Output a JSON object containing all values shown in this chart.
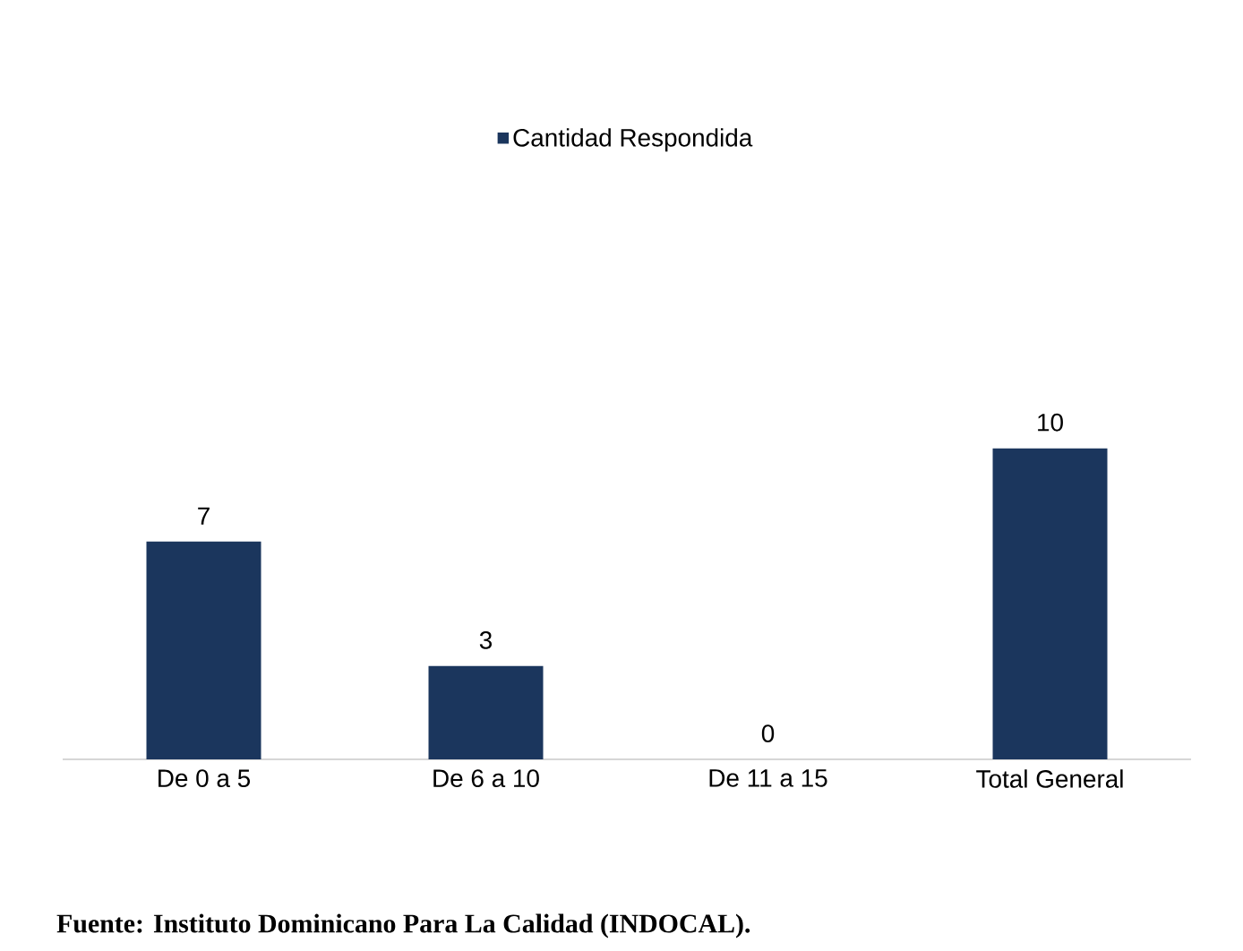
{
  "chart_data": {
    "type": "bar",
    "categories": [
      "De 0 a 5",
      "De 6 a 10",
      "De 11 a 15",
      "Total General"
    ],
    "series": [
      {
        "name": "Cantidad Respondida",
        "color": "#1b365d",
        "values": [
          7,
          3,
          0,
          10
        ]
      }
    ],
    "data_labels": true,
    "legend": "top",
    "annotations": [
      "Fuente: Instituto Dominicano Para La Calidad (INDOCAL)."
    ]
  }
}
